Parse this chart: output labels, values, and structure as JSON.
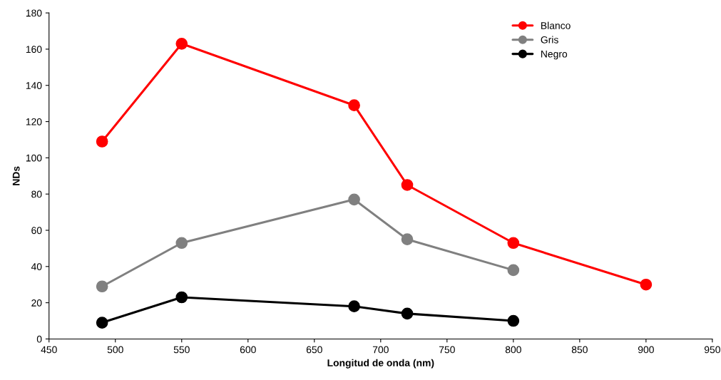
{
  "chart_data": {
    "type": "line",
    "xlabel": "Longitud de onda (nm)",
    "ylabel": "NDs",
    "xlim": [
      450,
      950
    ],
    "xticks": [
      450,
      500,
      550,
      600,
      650,
      700,
      750,
      800,
      850,
      900,
      950
    ],
    "ylim": [
      0,
      180
    ],
    "yticks": [
      0,
      20,
      40,
      60,
      80,
      100,
      120,
      140,
      160,
      180
    ],
    "grid": false,
    "legend": "top right",
    "marker": "circle",
    "line_style": "solid",
    "series": [
      {
        "name": "Blanco",
        "color": "#ff0000",
        "x": [
          490,
          550,
          680,
          720,
          800,
          900
        ],
        "values": [
          109,
          163,
          129,
          85,
          53,
          30
        ]
      },
      {
        "name": "Gris",
        "color": "#808080",
        "x": [
          490,
          550,
          680,
          720,
          800
        ],
        "values": [
          29,
          53,
          77,
          55,
          38
        ]
      },
      {
        "name": "Negro",
        "color": "#000000",
        "x": [
          490,
          550,
          680,
          720,
          800
        ],
        "values": [
          9,
          23,
          18,
          14,
          10
        ]
      }
    ]
  }
}
